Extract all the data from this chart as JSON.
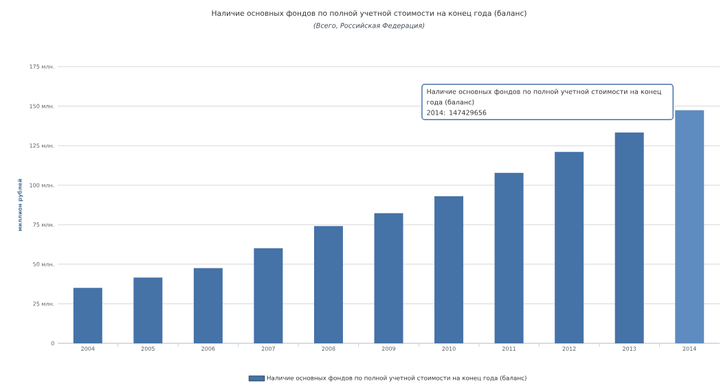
{
  "chart_data": {
    "type": "bar",
    "title": "Наличие основных фондов по полной учетной стоимости на конец года (баланс)",
    "subtitle": "(Всего, Российская Федерация)",
    "ylabel": "миллион рублей",
    "categories": [
      "2004",
      "2005",
      "2006",
      "2007",
      "2008",
      "2009",
      "2010",
      "2011",
      "2012",
      "2013",
      "2014"
    ],
    "series": [
      {
        "name": "Наличие основных фондов по полной учетной стоимости на конец года (баланс)",
        "color": "#4572a7",
        "colors": [
          "#4572a7",
          "#4572a7",
          "#4572a7",
          "#4572a7",
          "#4572a7",
          "#4572a7",
          "#4572a7",
          "#4572a7",
          "#4572a7",
          "#4572a7",
          "#5e8cc0"
        ],
        "values": [
          35.1,
          41.6,
          47.5,
          60.1,
          74.2,
          82.3,
          93.0,
          107.8,
          121.0,
          133.3,
          147.4
        ]
      }
    ],
    "ylim": [
      0,
      175
    ],
    "yticks": [
      0,
      {
        "value": 25,
        "label": "25 млн."
      },
      {
        "value": 50,
        "label": "50 млн."
      },
      {
        "value": 75,
        "label": "75 млн."
      },
      {
        "value": 100,
        "label": "100 млн."
      },
      {
        "value": 125,
        "label": "125 млн."
      },
      {
        "value": 150,
        "label": "150 млн."
      },
      {
        "value": 175,
        "label": "175 млн."
      }
    ],
    "grid": "y",
    "legend": "bottom",
    "annotations": [
      "Наличие основных фондов по полной учетной стоимости на конец года (баланс)",
      "2014: 147429656"
    ]
  }
}
